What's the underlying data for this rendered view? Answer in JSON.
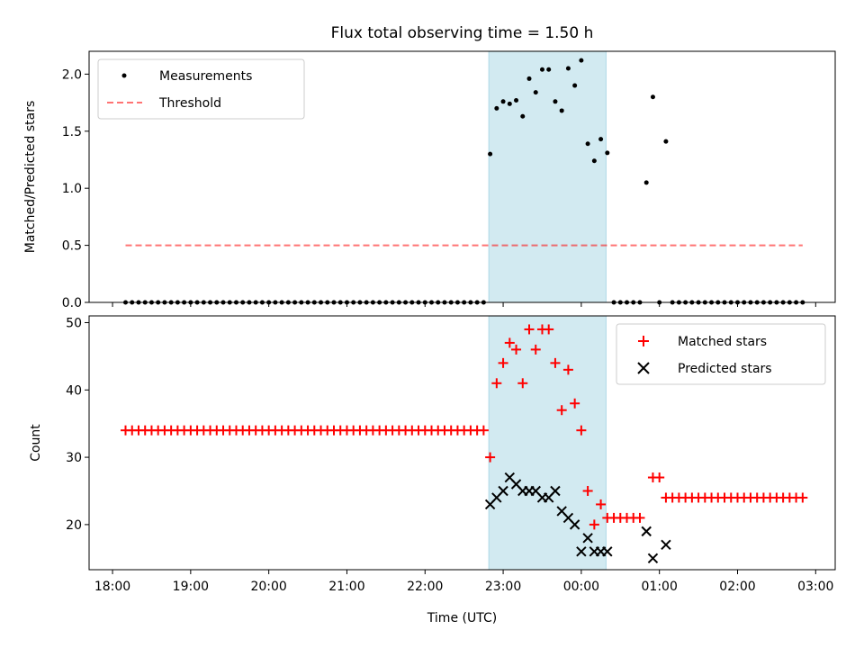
{
  "chart_data": [
    {
      "type": "scatter",
      "title": "Flux total observing time = 1.50 h",
      "xlabel": "",
      "ylabel": "Matched/Predicted stars",
      "ylim": [
        0,
        2.2
      ],
      "yticks": [
        "0.0",
        "0.5",
        "1.0",
        "1.5",
        "2.0"
      ],
      "xlim_hours": [
        17.7,
        27.25
      ],
      "legend_placement": "top-left",
      "shaded_region": {
        "start": "22:49",
        "end": "00:19",
        "color": "#add8e6"
      },
      "threshold": {
        "name": "Threshold",
        "y": 0.5,
        "x_start": "18:10",
        "x_end": "02:50",
        "color": "#ff0000"
      },
      "series": [
        {
          "name": "Measurements",
          "color": "#000000",
          "marker": "dot",
          "points": [
            [
              "18:10",
              0
            ],
            [
              "18:15",
              0
            ],
            [
              "18:20",
              0
            ],
            [
              "18:25",
              0
            ],
            [
              "18:30",
              0
            ],
            [
              "18:35",
              0
            ],
            [
              "18:40",
              0
            ],
            [
              "18:45",
              0
            ],
            [
              "18:50",
              0
            ],
            [
              "18:55",
              0
            ],
            [
              "19:00",
              0
            ],
            [
              "19:05",
              0
            ],
            [
              "19:10",
              0
            ],
            [
              "19:15",
              0
            ],
            [
              "19:20",
              0
            ],
            [
              "19:25",
              0
            ],
            [
              "19:30",
              0
            ],
            [
              "19:35",
              0
            ],
            [
              "19:40",
              0
            ],
            [
              "19:45",
              0
            ],
            [
              "19:50",
              0
            ],
            [
              "19:55",
              0
            ],
            [
              "20:00",
              0
            ],
            [
              "20:05",
              0
            ],
            [
              "20:10",
              0
            ],
            [
              "20:15",
              0
            ],
            [
              "20:20",
              0
            ],
            [
              "20:25",
              0
            ],
            [
              "20:30",
              0
            ],
            [
              "20:35",
              0
            ],
            [
              "20:40",
              0
            ],
            [
              "20:45",
              0
            ],
            [
              "20:50",
              0
            ],
            [
              "20:55",
              0
            ],
            [
              "21:00",
              0
            ],
            [
              "21:05",
              0
            ],
            [
              "21:10",
              0
            ],
            [
              "21:15",
              0
            ],
            [
              "21:20",
              0
            ],
            [
              "21:25",
              0
            ],
            [
              "21:30",
              0
            ],
            [
              "21:35",
              0
            ],
            [
              "21:40",
              0
            ],
            [
              "21:45",
              0
            ],
            [
              "21:50",
              0
            ],
            [
              "21:55",
              0
            ],
            [
              "22:00",
              0
            ],
            [
              "22:05",
              0
            ],
            [
              "22:10",
              0
            ],
            [
              "22:15",
              0
            ],
            [
              "22:20",
              0
            ],
            [
              "22:25",
              0
            ],
            [
              "22:30",
              0
            ],
            [
              "22:35",
              0
            ],
            [
              "22:40",
              0
            ],
            [
              "22:45",
              0
            ],
            [
              "22:50",
              1.3
            ],
            [
              "22:55",
              1.7
            ],
            [
              "23:00",
              1.76
            ],
            [
              "23:05",
              1.74
            ],
            [
              "23:10",
              1.77
            ],
            [
              "23:15",
              1.63
            ],
            [
              "23:20",
              1.96
            ],
            [
              "23:25",
              1.84
            ],
            [
              "23:30",
              2.04
            ],
            [
              "23:35",
              2.04
            ],
            [
              "23:40",
              1.76
            ],
            [
              "23:45",
              1.68
            ],
            [
              "23:50",
              2.05
            ],
            [
              "23:55",
              1.9
            ],
            [
              "00:00",
              2.12
            ],
            [
              "00:05",
              1.39
            ],
            [
              "00:10",
              1.24
            ],
            [
              "00:15",
              1.43
            ],
            [
              "00:20",
              1.31
            ],
            [
              "00:25",
              0
            ],
            [
              "00:30",
              0
            ],
            [
              "00:35",
              0
            ],
            [
              "00:40",
              0
            ],
            [
              "00:45",
              0
            ],
            [
              "00:50",
              1.05
            ],
            [
              "00:55",
              1.8
            ],
            [
              "01:00",
              0
            ],
            [
              "01:05",
              1.41
            ],
            [
              "01:10",
              0
            ],
            [
              "01:15",
              0
            ],
            [
              "01:20",
              0
            ],
            [
              "01:25",
              0
            ],
            [
              "01:30",
              0
            ],
            [
              "01:35",
              0
            ],
            [
              "01:40",
              0
            ],
            [
              "01:45",
              0
            ],
            [
              "01:50",
              0
            ],
            [
              "01:55",
              0
            ],
            [
              "02:00",
              0
            ],
            [
              "02:05",
              0
            ],
            [
              "02:10",
              0
            ],
            [
              "02:15",
              0
            ],
            [
              "02:20",
              0
            ],
            [
              "02:25",
              0
            ],
            [
              "02:30",
              0
            ],
            [
              "02:35",
              0
            ],
            [
              "02:40",
              0
            ],
            [
              "02:45",
              0
            ],
            [
              "02:50",
              0
            ]
          ]
        }
      ]
    },
    {
      "type": "scatter",
      "title": "",
      "xlabel": "Time (UTC)",
      "ylabel": "Count",
      "ylim": [
        13.3,
        51
      ],
      "yticks": [
        "20",
        "30",
        "40",
        "50"
      ],
      "xlim_hours": [
        17.7,
        27.25
      ],
      "xticks": [
        "18:00",
        "19:00",
        "20:00",
        "21:00",
        "22:00",
        "23:00",
        "00:00",
        "01:00",
        "02:00",
        "03:00"
      ],
      "legend_placement": "top-right",
      "shaded_region": {
        "start": "22:49",
        "end": "00:19",
        "color": "#add8e6"
      },
      "series": [
        {
          "name": "Matched stars",
          "color": "#ff0000",
          "marker": "plus",
          "points": [
            [
              "18:10",
              34
            ],
            [
              "18:15",
              34
            ],
            [
              "18:20",
              34
            ],
            [
              "18:25",
              34
            ],
            [
              "18:30",
              34
            ],
            [
              "18:35",
              34
            ],
            [
              "18:40",
              34
            ],
            [
              "18:45",
              34
            ],
            [
              "18:50",
              34
            ],
            [
              "18:55",
              34
            ],
            [
              "19:00",
              34
            ],
            [
              "19:05",
              34
            ],
            [
              "19:10",
              34
            ],
            [
              "19:15",
              34
            ],
            [
              "19:20",
              34
            ],
            [
              "19:25",
              34
            ],
            [
              "19:30",
              34
            ],
            [
              "19:35",
              34
            ],
            [
              "19:40",
              34
            ],
            [
              "19:45",
              34
            ],
            [
              "19:50",
              34
            ],
            [
              "19:55",
              34
            ],
            [
              "20:00",
              34
            ],
            [
              "20:05",
              34
            ],
            [
              "20:10",
              34
            ],
            [
              "20:15",
              34
            ],
            [
              "20:20",
              34
            ],
            [
              "20:25",
              34
            ],
            [
              "20:30",
              34
            ],
            [
              "20:35",
              34
            ],
            [
              "20:40",
              34
            ],
            [
              "20:45",
              34
            ],
            [
              "20:50",
              34
            ],
            [
              "20:55",
              34
            ],
            [
              "21:00",
              34
            ],
            [
              "21:05",
              34
            ],
            [
              "21:10",
              34
            ],
            [
              "21:15",
              34
            ],
            [
              "21:20",
              34
            ],
            [
              "21:25",
              34
            ],
            [
              "21:30",
              34
            ],
            [
              "21:35",
              34
            ],
            [
              "21:40",
              34
            ],
            [
              "21:45",
              34
            ],
            [
              "21:50",
              34
            ],
            [
              "21:55",
              34
            ],
            [
              "22:00",
              34
            ],
            [
              "22:05",
              34
            ],
            [
              "22:10",
              34
            ],
            [
              "22:15",
              34
            ],
            [
              "22:20",
              34
            ],
            [
              "22:25",
              34
            ],
            [
              "22:30",
              34
            ],
            [
              "22:35",
              34
            ],
            [
              "22:40",
              34
            ],
            [
              "22:45",
              34
            ],
            [
              "22:50",
              30
            ],
            [
              "22:55",
              41
            ],
            [
              "23:00",
              44
            ],
            [
              "23:05",
              47
            ],
            [
              "23:10",
              46
            ],
            [
              "23:15",
              41
            ],
            [
              "23:20",
              49
            ],
            [
              "23:25",
              46
            ],
            [
              "23:30",
              49
            ],
            [
              "23:35",
              49
            ],
            [
              "23:40",
              44
            ],
            [
              "23:45",
              37
            ],
            [
              "23:50",
              43
            ],
            [
              "23:55",
              38
            ],
            [
              "00:00",
              34
            ],
            [
              "00:05",
              25
            ],
            [
              "00:10",
              20
            ],
            [
              "00:15",
              23
            ],
            [
              "00:20",
              21
            ],
            [
              "00:25",
              21
            ],
            [
              "00:30",
              21
            ],
            [
              "00:35",
              21
            ],
            [
              "00:40",
              21
            ],
            [
              "00:45",
              21
            ],
            [
              "00:55",
              27
            ],
            [
              "01:00",
              27
            ],
            [
              "01:05",
              24
            ],
            [
              "01:10",
              24
            ],
            [
              "01:15",
              24
            ],
            [
              "01:20",
              24
            ],
            [
              "01:25",
              24
            ],
            [
              "01:30",
              24
            ],
            [
              "01:35",
              24
            ],
            [
              "01:40",
              24
            ],
            [
              "01:45",
              24
            ],
            [
              "01:50",
              24
            ],
            [
              "01:55",
              24
            ],
            [
              "02:00",
              24
            ],
            [
              "02:05",
              24
            ],
            [
              "02:10",
              24
            ],
            [
              "02:15",
              24
            ],
            [
              "02:20",
              24
            ],
            [
              "02:25",
              24
            ],
            [
              "02:30",
              24
            ],
            [
              "02:35",
              24
            ],
            [
              "02:40",
              24
            ],
            [
              "02:45",
              24
            ],
            [
              "02:50",
              24
            ]
          ]
        },
        {
          "name": "Predicted stars",
          "color": "#000000",
          "marker": "x",
          "points": [
            [
              "22:50",
              23
            ],
            [
              "22:55",
              24
            ],
            [
              "23:00",
              25
            ],
            [
              "23:05",
              27
            ],
            [
              "23:10",
              26
            ],
            [
              "23:15",
              25
            ],
            [
              "23:20",
              25
            ],
            [
              "23:25",
              25
            ],
            [
              "23:30",
              24
            ],
            [
              "23:35",
              24
            ],
            [
              "23:40",
              25
            ],
            [
              "23:45",
              22
            ],
            [
              "23:50",
              21
            ],
            [
              "23:55",
              20
            ],
            [
              "00:00",
              16
            ],
            [
              "00:05",
              18
            ],
            [
              "00:10",
              16
            ],
            [
              "00:15",
              16
            ],
            [
              "00:20",
              16
            ],
            [
              "00:50",
              19
            ],
            [
              "00:55",
              15
            ],
            [
              "01:05",
              17
            ]
          ]
        }
      ]
    }
  ]
}
